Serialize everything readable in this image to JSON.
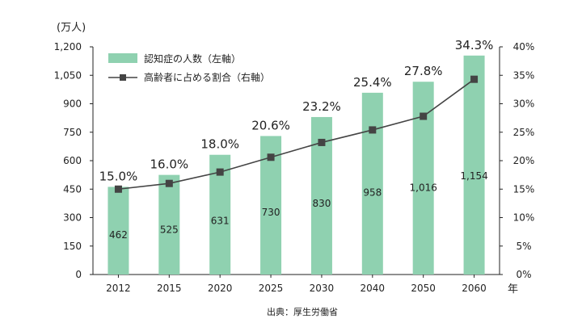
{
  "chart_data": {
    "type": "bar",
    "categories": [
      "2012",
      "2015",
      "2020",
      "2025",
      "2030",
      "2040",
      "2050",
      "2060"
    ],
    "series": [
      {
        "name": "認知症の人数（左軸）",
        "type": "bar",
        "axis": "left",
        "color": "#8fd1b0",
        "values": [
          462,
          525,
          631,
          730,
          830,
          958,
          1016,
          1154
        ],
        "labels": [
          "462",
          "525",
          "631",
          "730",
          "830",
          "958",
          "1,016",
          "1,154"
        ]
      },
      {
        "name": "高齢者に占める割合（右軸）",
        "type": "line",
        "axis": "right",
        "color": "#444444",
        "values": [
          15.0,
          16.0,
          18.0,
          20.6,
          23.2,
          25.4,
          27.8,
          34.3
        ],
        "labels": [
          "15.0%",
          "16.0%",
          "18.0%",
          "20.6%",
          "23.2%",
          "25.4%",
          "27.8%",
          "34.3%"
        ]
      }
    ],
    "y_left": {
      "unit_label": "(万人)",
      "range": [
        0,
        1200
      ],
      "ticks": [
        "0",
        "150",
        "300",
        "450",
        "600",
        "750",
        "900",
        "1,050",
        "1,200"
      ]
    },
    "y_right": {
      "range": [
        0,
        40
      ],
      "ticks": [
        "0%",
        "5%",
        "10%",
        "15%",
        "20%",
        "25%",
        "30%",
        "35%",
        "40%"
      ]
    },
    "x_unit": "年",
    "legend_position": "top-left",
    "grid": false,
    "source": "出典：厚生労働省"
  }
}
